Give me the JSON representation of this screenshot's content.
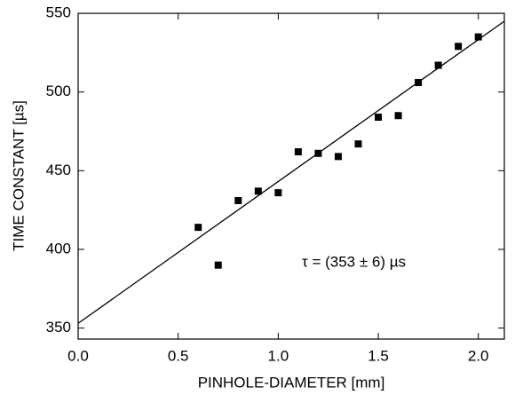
{
  "chart_data": {
    "type": "scatter",
    "xlabel": "PINHOLE-DIAMETER  [mm]",
    "ylabel": "TIME CONSTANT [µs]",
    "annotation": "τ = (353 ± 6) µs",
    "xlim": [
      0,
      2.13
    ],
    "ylim": [
      343,
      550
    ],
    "xticks": [
      {
        "value": 0,
        "label": "0.0"
      },
      0.5,
      {
        "value": 1,
        "label": "1.0"
      },
      1.5,
      {
        "value": 2,
        "label": "2.0"
      }
    ],
    "yticks": [
      350,
      400,
      450,
      500,
      550
    ],
    "series": [
      {
        "color": "#000000",
        "x": [
          0.6,
          0.7,
          0.8,
          0.9,
          1.0,
          1.1,
          1.2,
          1.3,
          1.4,
          1.5,
          1.6,
          1.7,
          1.8,
          1.9,
          2.0
        ],
        "values": [
          414,
          390,
          431,
          437,
          436,
          462,
          461,
          459,
          467,
          484,
          485,
          506,
          517,
          529,
          535
        ]
      },
      {
        "type": "line",
        "color": "#000000",
        "x": [
          0,
          2.13
        ],
        "values": [
          353,
          545
        ]
      }
    ]
  }
}
